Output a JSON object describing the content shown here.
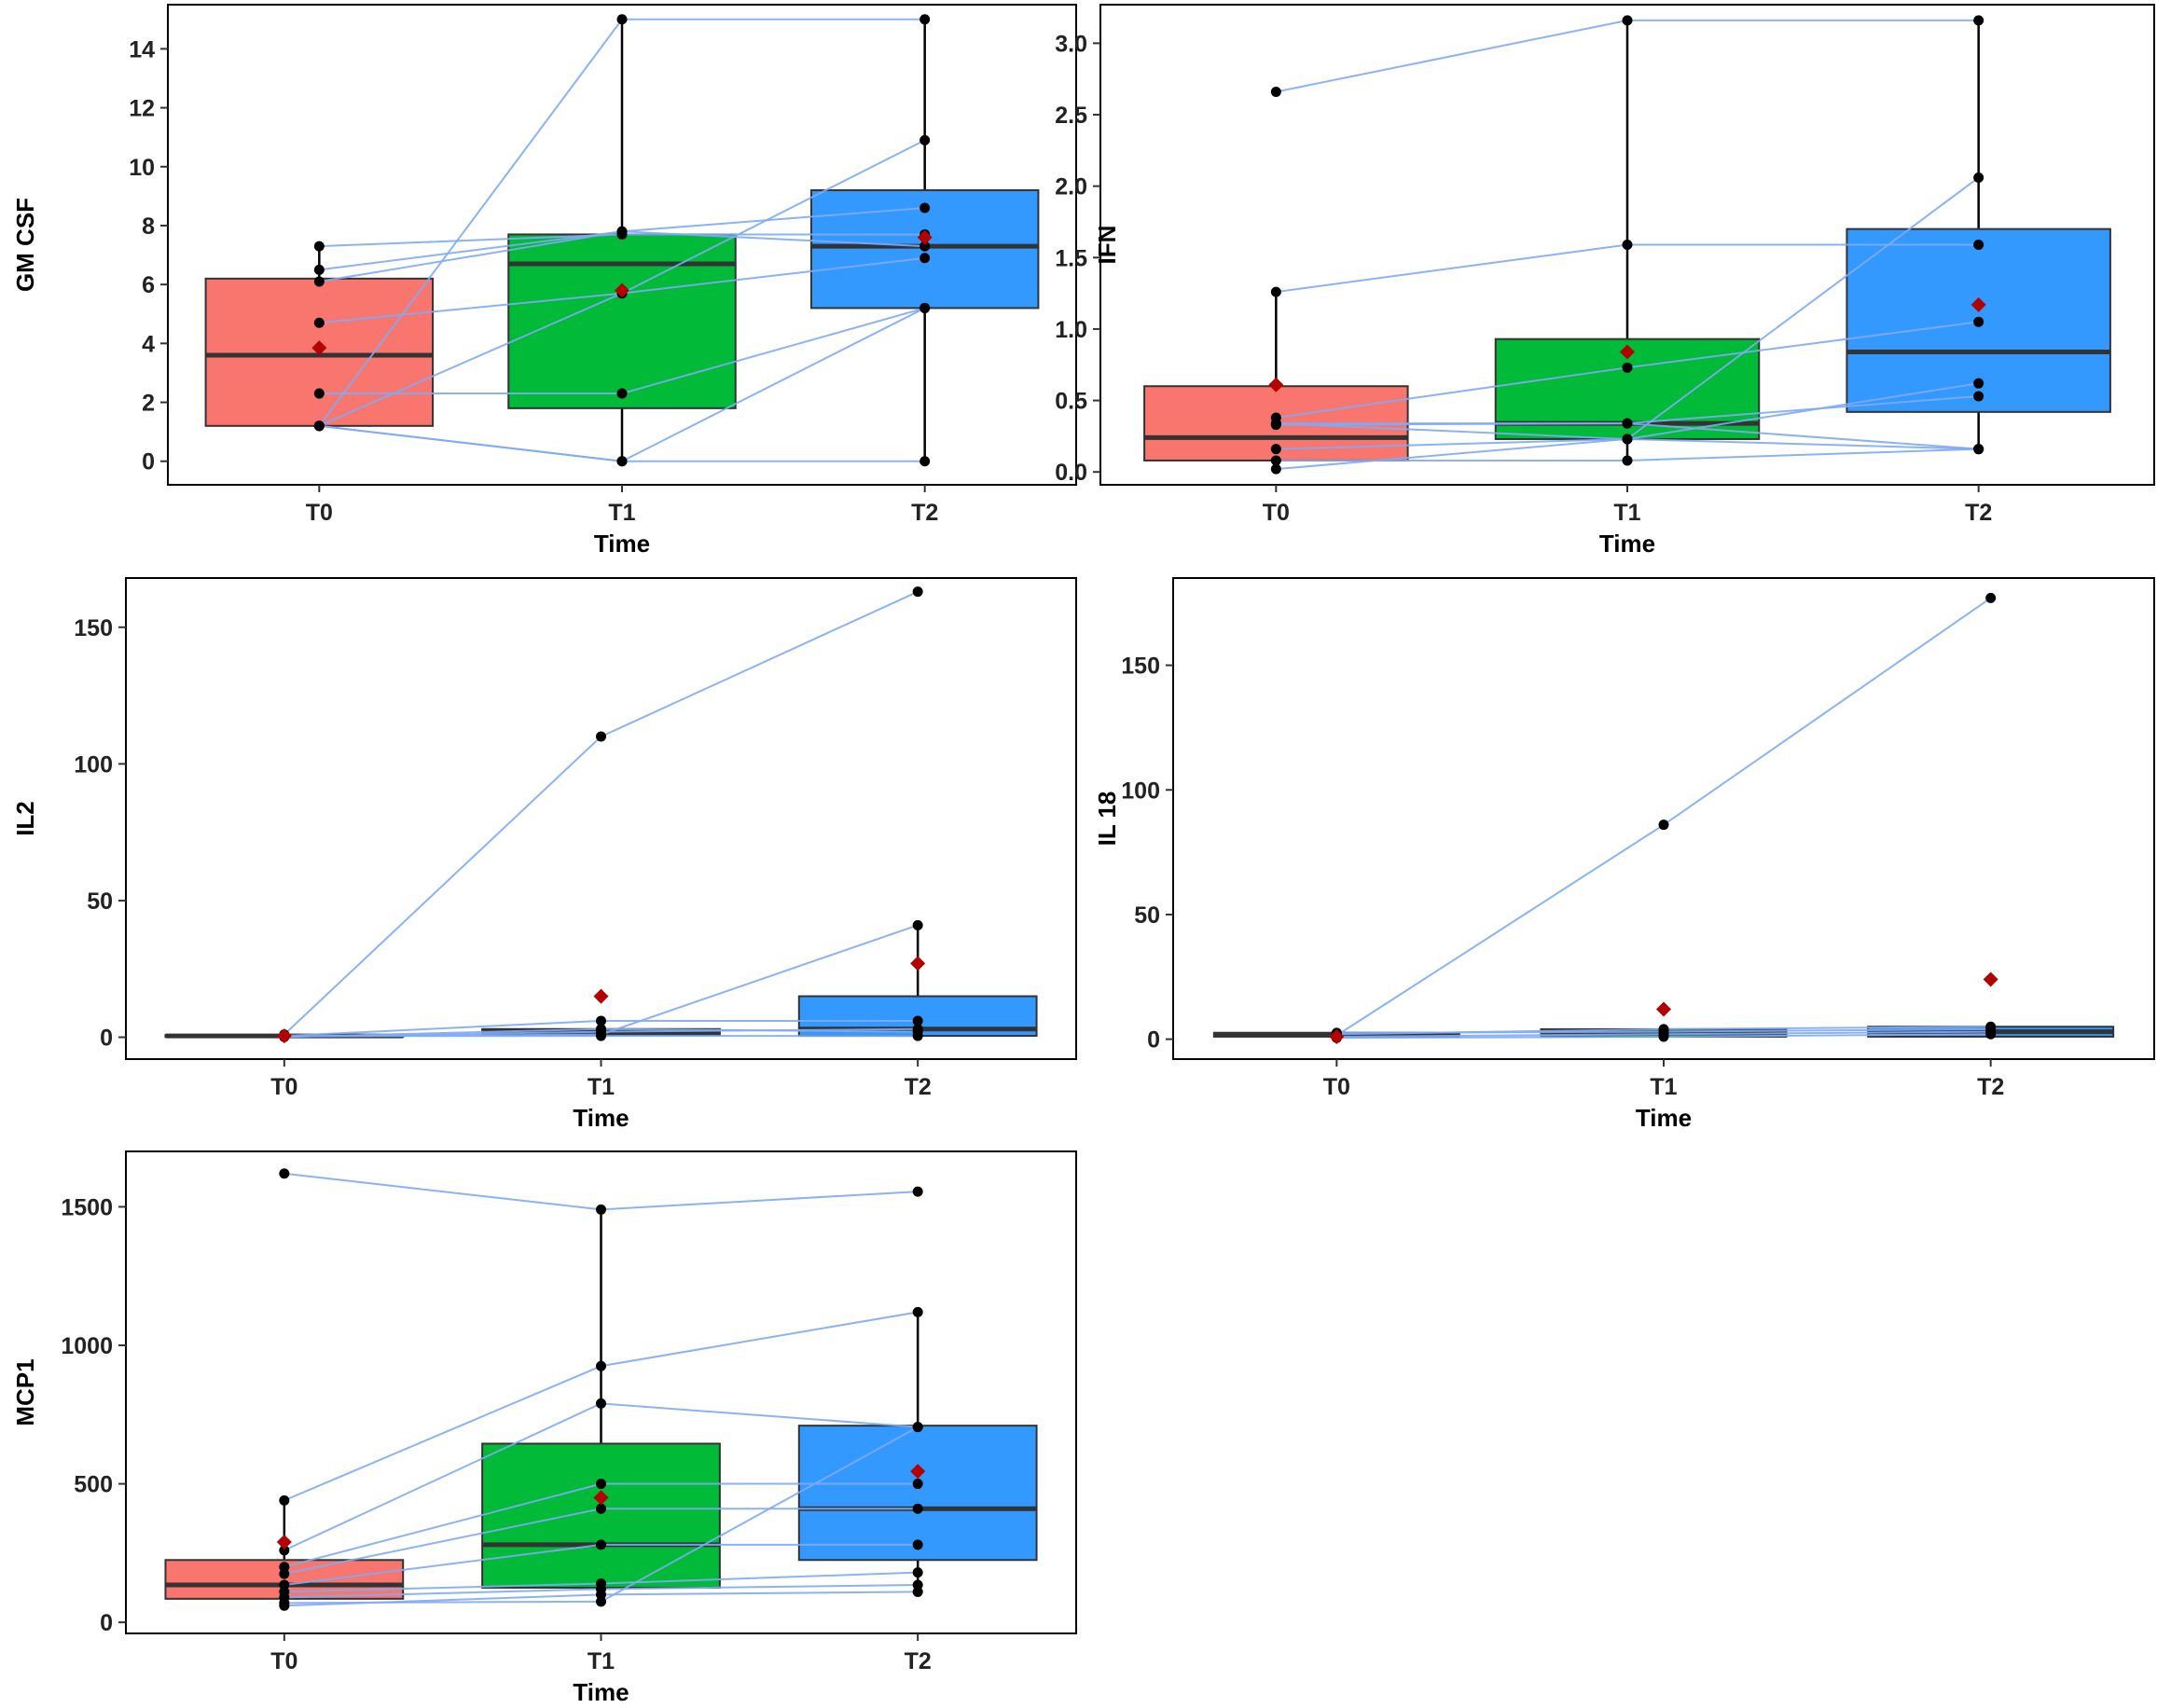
{
  "colors": {
    "T0": "#F8766D",
    "T1": "#00BA38",
    "T2": "#3399FF",
    "subject_line": "#7FAAF5",
    "point": "#000000",
    "mean": "#B30000",
    "median": "#333333"
  },
  "chart_data": [
    {
      "id": "gmcsf",
      "type": "box",
      "xlabel": "Time",
      "ylabel": "GM CSF",
      "categories": [
        "T0",
        "T1",
        "T2"
      ],
      "ylim": [
        -0.8,
        15.5
      ],
      "yticks": [
        0,
        2,
        4,
        6,
        8,
        10,
        12,
        14
      ],
      "ytick_labels": [
        "0",
        "2",
        "4",
        "6",
        "8",
        "10",
        "12",
        "14"
      ],
      "boxes": [
        {
          "q1": 1.2,
          "median": 3.6,
          "q3": 6.2,
          "lower": 1.2,
          "upper": 7.3
        },
        {
          "q1": 1.8,
          "median": 6.7,
          "q3": 7.7,
          "lower": 0,
          "upper": 15.0
        },
        {
          "q1": 5.2,
          "median": 7.3,
          "q3": 9.2,
          "lower": 0,
          "upper": 15.0
        }
      ],
      "means": [
        3.85,
        5.8,
        7.6
      ],
      "subjects": [
        [
          1.2,
          15.0,
          15.0
        ],
        [
          6.1,
          7.8,
          8.6
        ],
        [
          4.7,
          5.7,
          10.9
        ],
        [
          7.3,
          7.7,
          7.7
        ],
        [
          6.5,
          7.8,
          7.3
        ],
        [
          2.3,
          2.3,
          5.2
        ],
        [
          1.2,
          0,
          0
        ],
        [
          1.2,
          0,
          5.2
        ],
        [
          1.2,
          5.7,
          6.9
        ]
      ]
    },
    {
      "id": "ifn",
      "type": "box",
      "xlabel": "Time",
      "ylabel": "IFN",
      "categories": [
        "T0",
        "T1",
        "T2"
      ],
      "ylim": [
        -0.09,
        3.27
      ],
      "yticks": [
        0,
        0.5,
        1.0,
        1.5,
        2.0,
        2.5,
        3.0
      ],
      "ytick_labels": [
        "0.0",
        "0.5",
        "1.0",
        "1.5",
        "2.0",
        "2.5",
        "3.0"
      ],
      "boxes": [
        {
          "q1": 0.08,
          "median": 0.24,
          "q3": 0.6,
          "lower": 0,
          "upper": 1.26
        },
        {
          "q1": 0.23,
          "median": 0.34,
          "q3": 0.93,
          "lower": 0.08,
          "upper": 3.16
        },
        {
          "q1": 0.42,
          "median": 0.84,
          "q3": 1.7,
          "lower": 0.16,
          "upper": 3.16
        }
      ],
      "means": [
        0.61,
        0.84,
        1.17
      ],
      "subjects": [
        [
          2.66,
          3.16,
          3.16
        ],
        [
          1.26,
          1.59,
          1.59
        ],
        [
          0.38,
          0.73,
          1.05
        ],
        [
          0.34,
          0.34,
          0.16
        ],
        [
          0.16,
          0.23,
          0.62
        ],
        [
          0.08,
          0.08,
          0.16
        ],
        [
          0.02,
          0.23,
          2.06
        ],
        [
          0.33,
          0.34,
          0.53
        ],
        [
          0.34,
          0.23,
          0.16
        ]
      ]
    },
    {
      "id": "il2",
      "type": "box",
      "xlabel": "Time",
      "ylabel": "IL2",
      "categories": [
        "T0",
        "T1",
        "T2"
      ],
      "ylim": [
        -8,
        168
      ],
      "yticks": [
        0,
        50,
        100,
        150
      ],
      "ytick_labels": [
        "0",
        "50",
        "100",
        "150"
      ],
      "boxes": [
        {
          "q1": 0.2,
          "median": 0.5,
          "q3": 0.8,
          "lower": 0,
          "upper": 1.2
        },
        {
          "q1": 0.8,
          "median": 2.0,
          "q3": 3.0,
          "lower": 0,
          "upper": 5.0
        },
        {
          "q1": 0.5,
          "median": 3.0,
          "q3": 15.0,
          "lower": 0,
          "upper": 41.0
        }
      ],
      "means": [
        0.5,
        15.0,
        27.0
      ],
      "subjects": [
        [
          1.0,
          110.0,
          163.0
        ],
        [
          0.5,
          6.0,
          6.0
        ],
        [
          0.3,
          1.0,
          41.0
        ],
        [
          0.2,
          2.0,
          3.0
        ],
        [
          0.4,
          0.5,
          0.5
        ],
        [
          0.1,
          3.0,
          2.0
        ]
      ]
    },
    {
      "id": "il18",
      "type": "box",
      "xlabel": "Time",
      "ylabel": "IL 18",
      "categories": [
        "T0",
        "T1",
        "T2"
      ],
      "ylim": [
        -8,
        185
      ],
      "yticks": [
        0,
        50,
        100,
        150
      ],
      "ytick_labels": [
        "0",
        "50",
        "100",
        "150"
      ],
      "boxes": [
        {
          "q1": 1.0,
          "median": 2.0,
          "q3": 2.5,
          "lower": 0.5,
          "upper": 3.0
        },
        {
          "q1": 1.0,
          "median": 2.5,
          "q3": 4.0,
          "lower": 0.5,
          "upper": 5.0
        },
        {
          "q1": 1.0,
          "median": 3.0,
          "q3": 5.0,
          "lower": 0.5,
          "upper": 5.5
        }
      ],
      "means": [
        1.0,
        12.0,
        24.0
      ],
      "subjects": [
        [
          1.5,
          86.0,
          177.0
        ],
        [
          2.0,
          4.0,
          5.0
        ],
        [
          1.0,
          2.0,
          3.0
        ],
        [
          0.5,
          1.0,
          2.0
        ],
        [
          2.5,
          3.0,
          4.0
        ]
      ]
    },
    {
      "id": "mcp1",
      "type": "box",
      "xlabel": "Time",
      "ylabel": "MCP1",
      "categories": [
        "T0",
        "T1",
        "T2"
      ],
      "ylim": [
        -40,
        1700
      ],
      "yticks": [
        0,
        500,
        1000,
        1500
      ],
      "ytick_labels": [
        "0",
        "500",
        "1000",
        "1500"
      ],
      "boxes": [
        {
          "q1": 85,
          "median": 135,
          "q3": 225,
          "lower": 60,
          "upper": 440
        },
        {
          "q1": 125,
          "median": 280,
          "q3": 645,
          "lower": 75,
          "upper": 1490
        },
        {
          "q1": 225,
          "median": 410,
          "q3": 710,
          "lower": 110,
          "upper": 1120
        }
      ],
      "means": [
        290,
        450,
        545
      ],
      "subjects": [
        [
          1620,
          1490,
          1555
        ],
        [
          440,
          925,
          1120
        ],
        [
          260,
          790,
          705
        ],
        [
          200,
          500,
          500
        ],
        [
          175,
          410,
          410
        ],
        [
          135,
          280,
          280
        ],
        [
          110,
          140,
          180
        ],
        [
          90,
          120,
          135
        ],
        [
          70,
          75,
          705
        ],
        [
          60,
          100,
          110
        ]
      ]
    }
  ]
}
